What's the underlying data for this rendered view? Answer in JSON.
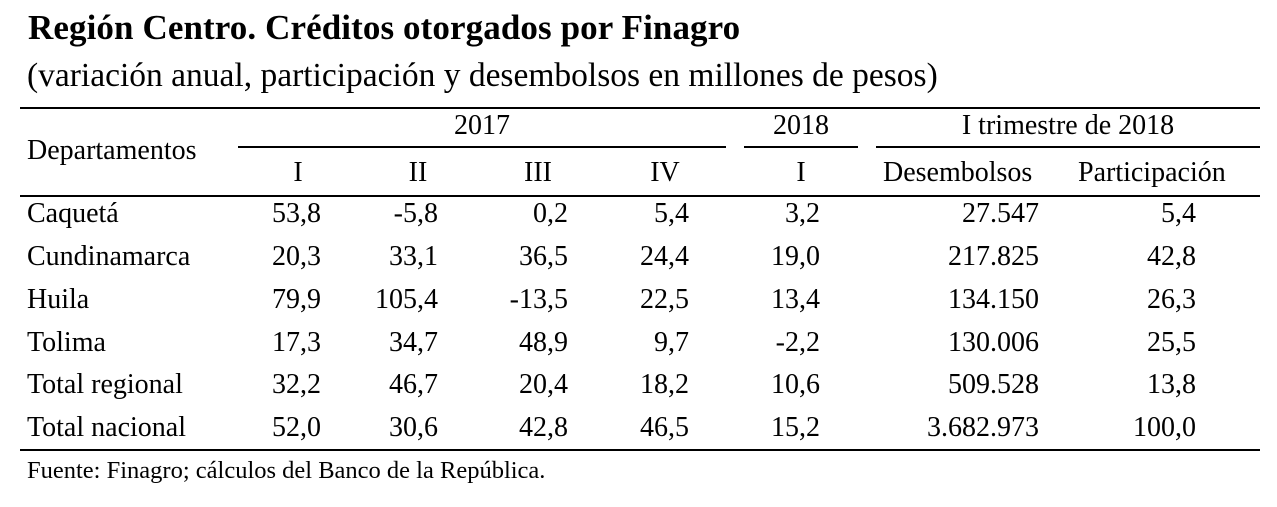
{
  "title": "Región Centro. Créditos otorgados por Finagro",
  "subtitle": "(variación anual, participación y desembolsos en millones de pesos)",
  "header": {
    "departamentos": "Departamentos",
    "year_2017": "2017",
    "year_2018": "2018",
    "trimestre": "I trimestre de 2018",
    "q1": "I",
    "q2": "II",
    "q3": "III",
    "q4": "IV",
    "q2018": "I",
    "desembolsos": "Desembolsos",
    "participacion": "Participación"
  },
  "rows": [
    {
      "name": "Caquetá",
      "v": [
        "53,8",
        "-5,8",
        "0,2",
        "5,4",
        "3,2",
        "27.547",
        "5,4"
      ]
    },
    {
      "name": "Cundinamarca",
      "v": [
        "20,3",
        "33,1",
        "36,5",
        "24,4",
        "19,0",
        "217.825",
        "42,8"
      ]
    },
    {
      "name": "Huila",
      "v": [
        "79,9",
        "105,4",
        "-13,5",
        "22,5",
        "13,4",
        "134.150",
        "26,3"
      ]
    },
    {
      "name": "Tolima",
      "v": [
        "17,3",
        "34,7",
        "48,9",
        "9,7",
        "-2,2",
        "130.006",
        "25,5"
      ]
    },
    {
      "name": "Total regional",
      "v": [
        "32,2",
        "46,7",
        "20,4",
        "18,2",
        "10,6",
        "509.528",
        "13,8"
      ]
    },
    {
      "name": "Total nacional",
      "v": [
        "52,0",
        "30,6",
        "42,8",
        "46,5",
        "15,2",
        "3.682.973",
        "100,0"
      ]
    }
  ],
  "source": "Fuente: Finagro; cálculos del Banco de la República."
}
